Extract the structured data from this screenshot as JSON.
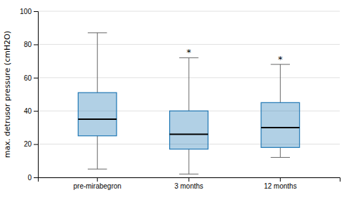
{
  "chart_data": {
    "type": "box",
    "categories": [
      "pre-mirabegron",
      "3 months",
      "12 months"
    ],
    "boxes": [
      {
        "whislo": 5,
        "q1": 25,
        "med": 35,
        "q3": 51,
        "whishi": 87
      },
      {
        "whislo": 2,
        "q1": 17,
        "med": 26,
        "q3": 40,
        "whishi": 72
      },
      {
        "whislo": 12,
        "q1": 18,
        "med": 30,
        "q3": 45,
        "whishi": 68
      }
    ],
    "annotations": [
      {
        "text": "*",
        "category": "3 months"
      },
      {
        "text": "*",
        "category": "12 months"
      }
    ],
    "ylabel": "max. detrusor pressure (cmH2O)",
    "ylim": [
      0,
      100
    ],
    "yticks": [
      0,
      20,
      40,
      60,
      80,
      100
    ],
    "grid": true
  }
}
